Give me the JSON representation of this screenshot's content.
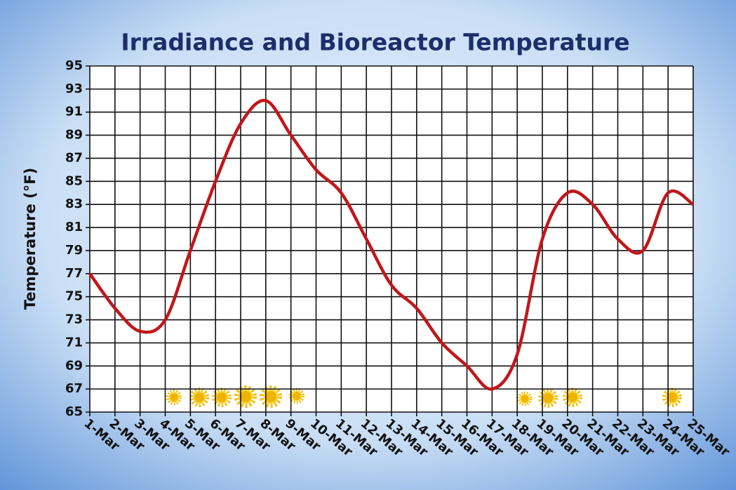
{
  "chart_data": {
    "type": "line",
    "title": "Irradiance and Bioreactor Temperature",
    "y_label": "Temperature (°F)",
    "categories": [
      "1-Mar",
      "2-Mar",
      "3-Mar",
      "4-Mar",
      "5-Mar",
      "6-Mar",
      "7-Mar",
      "8-Mar",
      "9-Mar",
      "10-Mar",
      "11-Mar",
      "12-Mar",
      "13-Mar",
      "14-Mar",
      "15-Mar",
      "16-Mar",
      "17-Mar",
      "18-Mar",
      "19-Mar",
      "20-Mar",
      "21-Mar",
      "22-Mar",
      "23-Mar",
      "24-Mar",
      "25-Mar"
    ],
    "values": [
      77,
      74,
      72,
      73,
      79,
      85,
      90,
      92,
      89,
      86,
      84,
      80,
      76,
      74,
      71,
      69,
      67,
      70,
      80,
      84,
      83,
      80,
      79,
      84,
      83
    ],
    "color": "#c0171b",
    "ylim": [
      65,
      95
    ],
    "yticks": [
      65,
      67,
      69,
      71,
      73,
      75,
      77,
      79,
      81,
      83,
      85,
      87,
      89,
      91,
      93,
      95
    ],
    "grid": true
  }
}
